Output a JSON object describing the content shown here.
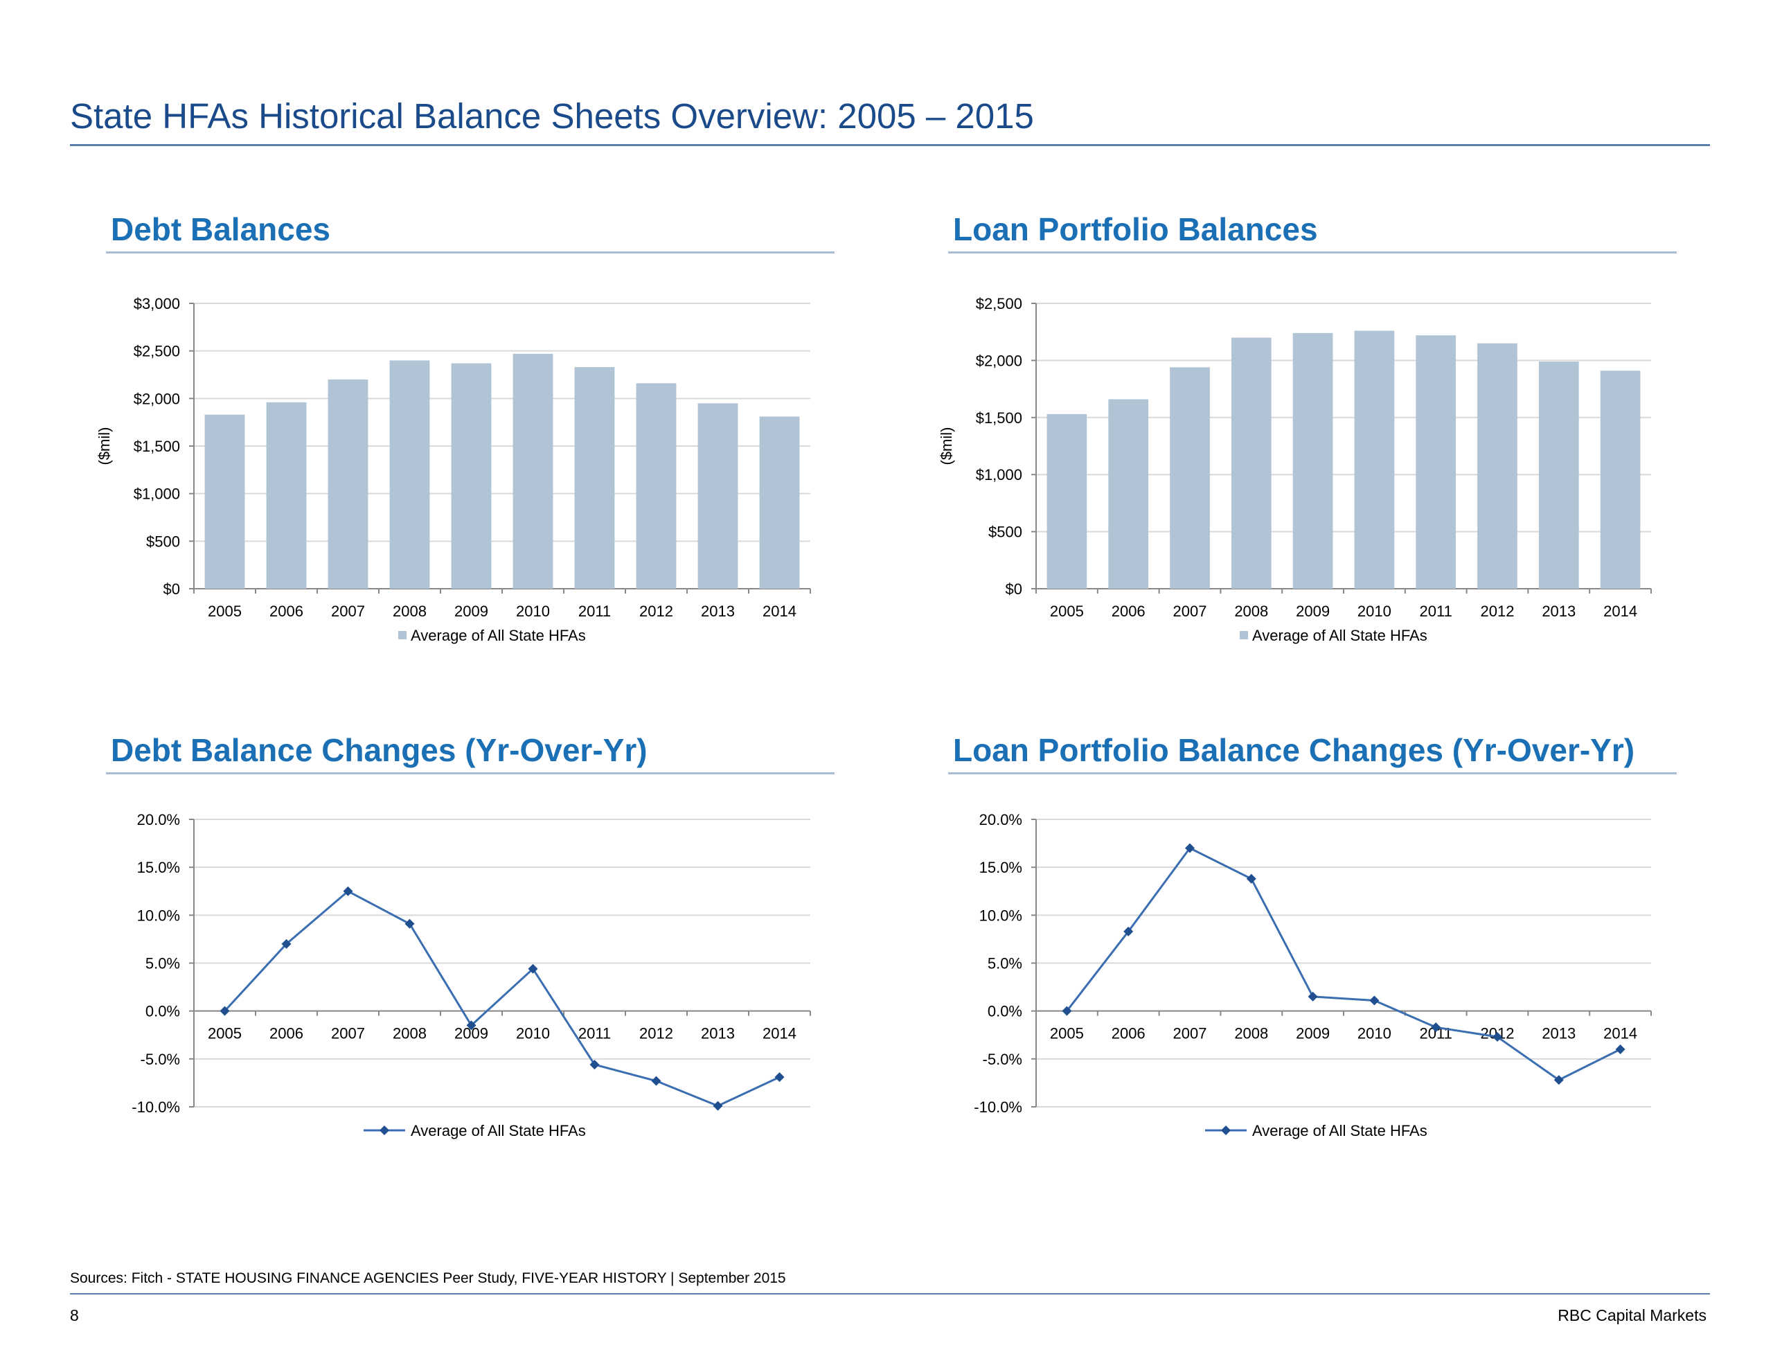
{
  "page": {
    "title": "State HFAs Historical Balance Sheets Overview: 2005 – 2015",
    "sources": "Sources: Fitch - STATE HOUSING FINANCE AGENCIES Peer Study, FIVE-YEAR HISTORY | September 2015",
    "page_number": "8",
    "company": "RBC Capital Markets"
  },
  "colors": {
    "title": "#1a4a8a",
    "section_title": "#1a6fb5",
    "bar": "#b0c4d5",
    "line": "#3a6eb0",
    "gridline": "#d9d9d9"
  },
  "sections": {
    "debt": "Debt Balances",
    "loan": "Loan Portfolio Balances",
    "debt_change": "Debt Balance Changes (Yr-Over-Yr)",
    "loan_change": "Loan Portfolio Balance Changes (Yr-Over-Yr)"
  },
  "chart_data": [
    {
      "type": "bar",
      "title": "Debt Balances",
      "ylabel": "($mil)",
      "xlabel": "",
      "categories": [
        "2005",
        "2006",
        "2007",
        "2008",
        "2009",
        "2010",
        "2011",
        "2012",
        "2013",
        "2014"
      ],
      "series": [
        {
          "name": "Average of All State HFAs",
          "values": [
            1830,
            1960,
            2200,
            2400,
            2370,
            2470,
            2330,
            2160,
            1950,
            1810
          ]
        }
      ],
      "ylim": [
        0,
        3000
      ],
      "yticks": [
        "$0",
        "$500",
        "$1,000",
        "$1,500",
        "$2,000",
        "$2,500",
        "$3,000"
      ],
      "grid": true,
      "legend": "bottom"
    },
    {
      "type": "bar",
      "title": "Loan Portfolio Balances",
      "ylabel": "($mil)",
      "xlabel": "",
      "categories": [
        "2005",
        "2006",
        "2007",
        "2008",
        "2009",
        "2010",
        "2011",
        "2012",
        "2013",
        "2014"
      ],
      "series": [
        {
          "name": "Average of All State HFAs",
          "values": [
            1530,
            1660,
            1940,
            2200,
            2240,
            2260,
            2220,
            2150,
            1990,
            1910
          ]
        }
      ],
      "ylim": [
        0,
        2500
      ],
      "yticks": [
        "$0",
        "$500",
        "$1,000",
        "$1,500",
        "$2,000",
        "$2,500"
      ],
      "grid": true,
      "legend": "bottom"
    },
    {
      "type": "line",
      "title": "Debt Balance Changes (Yr-Over-Yr)",
      "ylabel": "",
      "xlabel": "",
      "categories": [
        "2005",
        "2006",
        "2007",
        "2008",
        "2009",
        "2010",
        "2011",
        "2012",
        "2013",
        "2014"
      ],
      "series": [
        {
          "name": "Average of All State HFAs",
          "values": [
            0.0,
            7.0,
            12.5,
            9.1,
            -1.5,
            4.4,
            -5.6,
            -7.3,
            -9.9,
            -6.9
          ]
        }
      ],
      "ylim": [
        -10,
        20
      ],
      "yticks": [
        "-10.0%",
        "-5.0%",
        "0.0%",
        "5.0%",
        "10.0%",
        "15.0%",
        "20.0%"
      ],
      "grid": true,
      "legend": "bottom"
    },
    {
      "type": "line",
      "title": "Loan Portfolio Balance Changes (Yr-Over-Yr)",
      "ylabel": "",
      "xlabel": "",
      "categories": [
        "2005",
        "2006",
        "2007",
        "2008",
        "2009",
        "2010",
        "2011",
        "2012",
        "2013",
        "2014"
      ],
      "series": [
        {
          "name": "Average of All State HFAs",
          "values": [
            0.0,
            8.3,
            17.0,
            13.8,
            1.5,
            1.1,
            -1.7,
            -2.7,
            -7.2,
            -4.0
          ]
        }
      ],
      "ylim": [
        -10,
        20
      ],
      "yticks": [
        "-10.0%",
        "-5.0%",
        "0.0%",
        "5.0%",
        "10.0%",
        "15.0%",
        "20.0%"
      ],
      "grid": true,
      "legend": "bottom"
    }
  ]
}
